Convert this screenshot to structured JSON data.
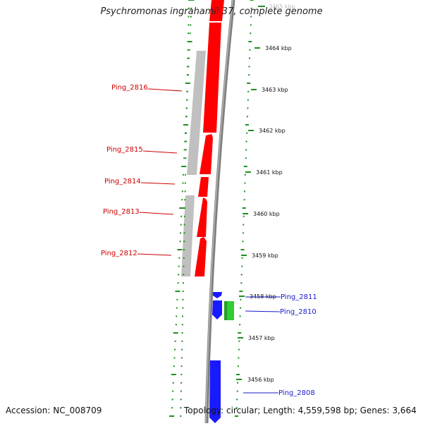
{
  "title": "Psychromonas ingrahamii 37, complete genome",
  "footer": {
    "accession_label": "Accession:",
    "accession": "NC_008709",
    "topology_label": "Topology:",
    "topology": "circular",
    "length_label": "Length:",
    "length": "4,559,598 bp",
    "genes_label": "Genes:",
    "genes": "3,664"
  },
  "colors": {
    "forward_gene": "#ff0000",
    "reverse_gene": "#1a1aff",
    "rna_gene": "#33cc33",
    "cds_grey": "#c0c0c0",
    "backbone": "#7f7f7f",
    "ticks": "#1f8f1f",
    "red_label": "#cc0000",
    "blue_label": "#1a1acc"
  },
  "scale": {
    "unit": "kbp",
    "ticks": [
      {
        "label": "3465 kbp"
      },
      {
        "label": "3464 kbp"
      },
      {
        "label": "3463 kbp"
      },
      {
        "label": "3462 kbp"
      },
      {
        "label": "3461 kbp"
      },
      {
        "label": "3460 kbp"
      },
      {
        "label": "3459 kbp"
      },
      {
        "label": "3458 kbp"
      },
      {
        "label": "3457 kbp"
      },
      {
        "label": "3456 kbp"
      }
    ]
  },
  "genes_left": [
    {
      "label": "Ping_2816"
    },
    {
      "label": "Ping_2815"
    },
    {
      "label": "Ping_2814"
    },
    {
      "label": "Ping_2813"
    },
    {
      "label": "Ping_2812"
    }
  ],
  "genes_right": [
    {
      "label": "Ping_2811"
    },
    {
      "label": "Ping_2810"
    },
    {
      "label": "Ping_2808"
    }
  ]
}
